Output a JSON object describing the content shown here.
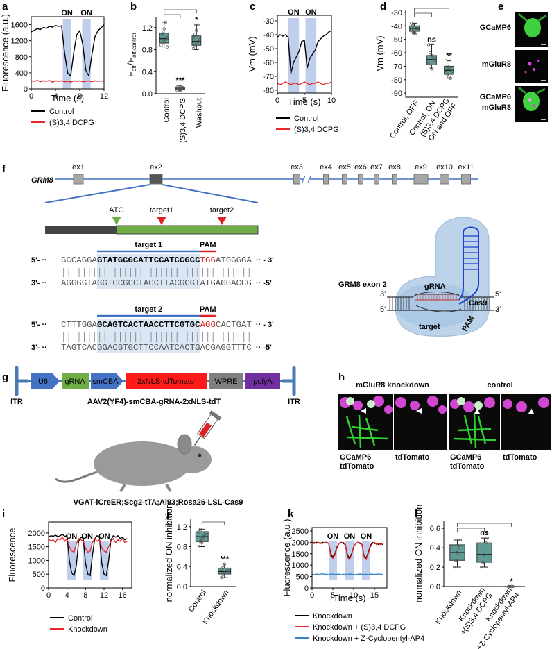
{
  "chart_data": [
    {
      "panel": "a",
      "type": "line",
      "ylabel": "Fluorescence (a.u.)",
      "xlabel": "Time (s)",
      "on_label": "ON",
      "on_periods": [
        [
          5.2,
          6.6
        ],
        [
          8.4,
          9.8
        ]
      ],
      "on_color": "#b4c7e7",
      "x": [
        0,
        0.5,
        1,
        1.5,
        2,
        2.5,
        3,
        3.5,
        4,
        4.5,
        5,
        5.5,
        6,
        6.5,
        7,
        7.5,
        8,
        8.5,
        9,
        9.5,
        10,
        10.5,
        11,
        11.5,
        12
      ],
      "series": [
        {
          "name": "Control",
          "color": "#000000",
          "values": [
            1420,
            1460,
            1500,
            1480,
            1530,
            1510,
            1560,
            1540,
            1580,
            1560,
            1570,
            900,
            400,
            320,
            900,
            1350,
            1450,
            1100,
            450,
            330,
            850,
            1300,
            1450,
            1520,
            1600
          ]
        },
        {
          "name": "(S)3,4 DCPG",
          "color": "#e8262b",
          "values": [
            200,
            190,
            210,
            180,
            200,
            190,
            210,
            170,
            200,
            190,
            200,
            180,
            190,
            170,
            200,
            190,
            200,
            180,
            190,
            200,
            180,
            200,
            190,
            200,
            190
          ]
        }
      ],
      "xlim": [
        0,
        12
      ],
      "xticks": [
        0,
        4,
        8,
        12
      ],
      "ylim": [
        0,
        1800
      ],
      "yticks": [
        0,
        400,
        800,
        1200,
        1600
      ]
    },
    {
      "panel": "b",
      "type": "box",
      "ylabel_parts": [
        "F",
        "off",
        "/F",
        "off,control"
      ],
      "color": "#5f9a94",
      "categories": [
        "Control",
        "(S)3,4 DCPG",
        "Washout"
      ],
      "boxes": [
        {
          "min": 0.85,
          "q1": 0.92,
          "median": 1.0,
          "q3": 1.1,
          "max": 1.3,
          "points": [
            0.88,
            0.92,
            0.95,
            1.0,
            1.02,
            1.05,
            1.1,
            1.18,
            1.3,
            0.85
          ]
        },
        {
          "min": 0.05,
          "q1": 0.08,
          "median": 0.1,
          "q3": 0.12,
          "max": 0.15,
          "points": [
            0.06,
            0.08,
            0.09,
            0.1,
            0.11,
            0.12,
            0.1,
            0.14
          ]
        },
        {
          "min": 0.8,
          "q1": 0.88,
          "median": 0.95,
          "q3": 1.05,
          "max": 1.25,
          "points": [
            0.82,
            0.88,
            0.92,
            0.95,
            0.98,
            1.02,
            1.08,
            1.15,
            1.25
          ]
        }
      ],
      "significance": [
        null,
        "***",
        "*"
      ],
      "ylim": [
        0,
        1.4
      ],
      "yticks": [
        {
          "value": 0,
          "label": "0.0"
        },
        0.4,
        0.8,
        1.2
      ]
    },
    {
      "panel": "c",
      "type": "line",
      "ylabel": "Vm  (mV)",
      "xlabel": "Time (s)",
      "on_label": "ON",
      "on_periods": [
        [
          2,
          4
        ],
        [
          5.2,
          7.2
        ]
      ],
      "on_color": "#b4c7e7",
      "x": [
        0,
        0.5,
        1,
        1.5,
        2,
        2.5,
        3,
        3.5,
        4,
        4.5,
        5,
        5.5,
        6,
        6.5,
        7,
        7.5,
        8,
        8.5,
        9,
        9.5,
        10
      ],
      "series": [
        {
          "name": "Control",
          "color": "#000000",
          "values": [
            -42,
            -40,
            -41,
            -40,
            -42,
            -68,
            -60,
            -56,
            -52,
            -45,
            -44,
            -64,
            -57,
            -54,
            -51,
            -45,
            -43,
            -41,
            -40,
            -38,
            -37
          ]
        },
        {
          "name": "(S)3,4 DCPG",
          "color": "#e8262b",
          "values": [
            -75,
            -76,
            -75,
            -74,
            -75,
            -76,
            -75,
            -75,
            -76,
            -75,
            -74,
            -75,
            -76,
            -75,
            -75,
            -74,
            -75,
            -76,
            -75,
            -75,
            -74
          ]
        }
      ],
      "xlim": [
        0,
        10
      ],
      "xticks": [
        0,
        5,
        10
      ],
      "ylim": [
        -82,
        -26
      ],
      "yticks": [
        -30,
        -40,
        -50,
        -60,
        -70,
        -80
      ]
    },
    {
      "panel": "d",
      "type": "box",
      "ylabel": "Vm (mV)",
      "color": "#5f9a94",
      "categories": [
        "Control, OFF",
        "Control, ON",
        "(S)3,4 DCPG\nON and OFF"
      ],
      "boxes": [
        {
          "min": -46,
          "q1": -44,
          "median": -42,
          "q3": -40,
          "max": -38,
          "points": [
            -38,
            -40,
            -41,
            -42,
            -42,
            -43,
            -44,
            -45,
            -46
          ]
        },
        {
          "min": -72,
          "q1": -69,
          "median": -65,
          "q3": -62,
          "max": -54,
          "points": [
            -54,
            -60,
            -62,
            -64,
            -66,
            -68,
            -70,
            -72
          ]
        },
        {
          "min": -79,
          "q1": -76,
          "median": -73,
          "q3": -70,
          "max": -66,
          "points": [
            -66,
            -70,
            -71,
            -73,
            -74,
            -75,
            -76,
            -78,
            -79
          ]
        }
      ],
      "significance": [
        null,
        "ns",
        "**"
      ],
      "ylim": [
        -93,
        -28
      ],
      "yticks": [
        -30,
        -40,
        -50,
        -60,
        -70,
        -80,
        -90
      ]
    },
    {
      "panel": "i",
      "type": "line",
      "ylabel": "Fluorescence",
      "on_label": "ON",
      "on_periods": [
        [
          4,
          5.9
        ],
        [
          7.4,
          9.3
        ],
        [
          11.1,
          13
        ]
      ],
      "on_color": "#b4c7e7",
      "x": [
        0,
        0.5,
        1,
        1.5,
        2,
        2.5,
        3,
        3.5,
        4,
        4.5,
        5,
        5.5,
        6,
        6.5,
        7,
        7.5,
        8,
        8.5,
        9,
        9.5,
        10,
        10.5,
        11,
        11.5,
        12,
        12.5,
        13,
        13.5,
        14,
        14.5,
        15,
        15.5,
        16,
        16.5,
        17
      ],
      "series": [
        {
          "name": "Control",
          "color": "#000000",
          "values": [
            1850,
            1900,
            1880,
            1920,
            1870,
            1900,
            1950,
            1880,
            1900,
            1000,
            550,
            450,
            800,
            1700,
            1850,
            1800,
            900,
            500,
            450,
            1200,
            1800,
            1900,
            1850,
            900,
            500,
            450,
            1000,
            1750,
            1900,
            1850,
            1900,
            1800,
            1850,
            1750,
            1800
          ]
        },
        {
          "name": "Knockdown",
          "color": "#e8262b",
          "values": [
            1800,
            1700,
            1750,
            1650,
            1800,
            1750,
            1850,
            1700,
            1800,
            1500,
            1350,
            1300,
            1600,
            1800,
            1750,
            1700,
            1450,
            1300,
            1350,
            1650,
            1800,
            1700,
            1750,
            1450,
            1350,
            1300,
            1500,
            1700,
            1800,
            1650,
            1750,
            1700,
            1800,
            1650,
            1700
          ]
        }
      ],
      "xlim": [
        0,
        18
      ],
      "xticks": [
        0,
        4,
        8,
        12,
        16
      ],
      "ylim": [
        0,
        2400
      ],
      "yticks": [
        0,
        500,
        1000,
        1500,
        2000
      ]
    },
    {
      "panel": "j",
      "type": "box",
      "ylabel": "normalized ON inhibition",
      "color": "#5f9a94",
      "categories": [
        "Control",
        "Knockdown"
      ],
      "boxes": [
        {
          "min": 0.8,
          "q1": 0.9,
          "median": 1.0,
          "q3": 1.1,
          "max": 1.15,
          "points": [
            0.8,
            0.9,
            0.95,
            1.0,
            1.05,
            1.1,
            1.15,
            0.88
          ]
        },
        {
          "min": 0.18,
          "q1": 0.25,
          "median": 0.3,
          "q3": 0.37,
          "max": 0.45,
          "points": [
            0.18,
            0.24,
            0.27,
            0.3,
            0.32,
            0.35,
            0.38,
            0.45
          ]
        }
      ],
      "significance": [
        null,
        "***"
      ],
      "ylim": [
        0,
        1.35
      ],
      "yticks": [
        {
          "value": 0,
          "label": "0.0"
        },
        0.4,
        0.8,
        1.2
      ]
    },
    {
      "panel": "k",
      "type": "line",
      "ylabel": "Fluorescence (a.u.)",
      "xlabel": "Time (s)",
      "on_label": "ON",
      "on_periods": [
        [
          4,
          6
        ],
        [
          8,
          10
        ],
        [
          12,
          14
        ]
      ],
      "on_color": "#b4c7e7",
      "x": [
        0,
        0.5,
        1,
        1.5,
        2,
        2.5,
        3,
        3.5,
        4,
        4.5,
        5,
        5.5,
        6,
        6.5,
        7,
        7.5,
        8,
        8.5,
        9,
        9.5,
        10,
        10.5,
        11,
        11.5,
        12,
        12.5,
        13,
        13.5,
        14,
        14.5,
        15,
        15.5,
        16,
        16.5,
        17
      ],
      "series": [
        {
          "name": "Knockdown",
          "color": "#000000",
          "values": [
            2000,
            1950,
            2000,
            1980,
            1950,
            2000,
            1970,
            2000,
            1950,
            1500,
            1350,
            1500,
            1800,
            1950,
            2000,
            1950,
            1900,
            1450,
            1300,
            1500,
            1800,
            1950,
            2000,
            1950,
            1900,
            1400,
            1300,
            1550,
            1850,
            2000,
            1950,
            1950,
            1900,
            1950,
            1900
          ]
        },
        {
          "name": "Knockdown + (S)3,4 DCPG",
          "color": "#e8262b",
          "values": [
            1980,
            2000,
            1950,
            2000,
            1970,
            1950,
            2000,
            1980,
            1950,
            1400,
            1300,
            1450,
            1750,
            1950,
            1980,
            2000,
            1900,
            1350,
            1250,
            1450,
            1800,
            1950,
            2000,
            1980,
            1900,
            1350,
            1250,
            1500,
            1800,
            1950,
            2000,
            1900,
            1950,
            1900,
            1950
          ]
        },
        {
          "name": "Knockdown + Z-Cyclopentyl-AP4",
          "color": "#3a86c8",
          "values": [
            600,
            580,
            610,
            590,
            600,
            620,
            590,
            600,
            580,
            610,
            600,
            590,
            600,
            610,
            580,
            600,
            590,
            600,
            610,
            600,
            590,
            580,
            600,
            610,
            600,
            590,
            600,
            580,
            610,
            600,
            590,
            600,
            610,
            590,
            600
          ]
        }
      ],
      "xlim": [
        0,
        18
      ],
      "xticks": [
        0,
        5,
        10,
        15
      ],
      "ylim": [
        0,
        2650
      ],
      "yticks": [
        0,
        500,
        1000,
        1500,
        2000,
        2500
      ]
    },
    {
      "panel": "l",
      "type": "box",
      "ylabel": "normalized ON inhibition",
      "color": "#5f9a94",
      "categories": [
        "Knockdown",
        "Knockdown\n+(S)3,4 DCPG",
        "Knockdown\n+Z-Cyclopentyl-AP4"
      ],
      "boxes": [
        {
          "min": 0.2,
          "q1": 0.27,
          "median": 0.35,
          "q3": 0.43,
          "max": 0.48,
          "points": [
            0.2,
            0.27,
            0.35,
            0.4,
            0.48
          ]
        },
        {
          "min": 0.2,
          "q1": 0.25,
          "median": 0.33,
          "q3": 0.45,
          "max": 0.5,
          "points": [
            0.2,
            0.25,
            0.33,
            0.45,
            0.5
          ]
        },
        {
          "min": 0,
          "q1": 0,
          "median": 0,
          "q3": 0,
          "max": 0,
          "points": [
            0,
            0,
            0,
            0
          ]
        }
      ],
      "significance": [
        null,
        "ns",
        "*"
      ],
      "ylim": [
        0,
        0.68
      ],
      "yticks": [
        {
          "value": 0,
          "label": "0.0"
        },
        0.2,
        0.4,
        0.6
      ]
    }
  ],
  "imaging_e": {
    "panel": "e",
    "rows": [
      [
        "GCaMP6"
      ],
      [
        "mGluR8"
      ],
      [
        "GCaMP6",
        "mGluR8"
      ]
    ]
  },
  "gene_editing": {
    "panel": "f",
    "gene": "GRM8",
    "exons": [
      "ex1",
      "ex2",
      "ex3",
      "ex4",
      "ex5",
      "ex6",
      "ex7",
      "ex8",
      "ex9",
      "ex10",
      "ex11"
    ],
    "start_codon": "ATG",
    "targets": [
      "target1",
      "target2"
    ],
    "sequences": [
      {
        "label": "target 1",
        "pam": "PAM",
        "top": {
          "start": "5'- ··",
          "parts": [
            "GCCAGGA",
            "GTATGCGCATTCCATCCGCC",
            "TGG",
            "ATGGGGA"
          ],
          "end": "·· - 3'"
        },
        "bottom": {
          "start": "3'- ··",
          "parts": [
            "AGGGGTAGGTCCGCCTACCTTACGCGTATGAGGACCG"
          ],
          "end": "·· -5'"
        }
      },
      {
        "label": "target 2",
        "pam": "PAM",
        "top": {
          "start": "5'- ··",
          "parts": [
            "CTTTGGA",
            "GCAGTCACTAACCTTCGTGC",
            "AGG",
            "CACTGAT"
          ],
          "end": "·· - 3'"
        },
        "bottom": {
          "start": "3'- ··",
          "parts": [
            "TAGTCACGGACGTGCTTCCAATCACTGACGAGGTTTC"
          ],
          "end": "·· -5'"
        }
      }
    ],
    "cas9": {
      "title": "GRM8 exon 2",
      "grna": "gRNA",
      "protein": "Cas9",
      "target": "target",
      "pam": "PAM",
      "ends": [
        "3'",
        "5'",
        "5'",
        "3'"
      ]
    }
  },
  "vector": {
    "panel": "g",
    "elements": [
      "ITR",
      "U6",
      "gRNA",
      "smCBA",
      "2xNLS-tdTomato",
      "WPRE",
      "polyA",
      "ITR"
    ],
    "construct": "AAV2(YF4)-smCBA-gRNA-2xNLS-tdT",
    "mouse": "VGAT-iCreER;Scg2-tTA;Ai93;Rosa26-LSL-Cas9"
  },
  "imaging_h": {
    "panel": "h",
    "groups": [
      {
        "title": "mGluR8 knockdown",
        "merge": [
          "GCaMP6",
          "tdTomato"
        ],
        "single": "tdTomato"
      },
      {
        "title": "control",
        "merge": [
          "GCaMP6",
          "tdTomato"
        ],
        "single": "tdTomato"
      }
    ]
  }
}
